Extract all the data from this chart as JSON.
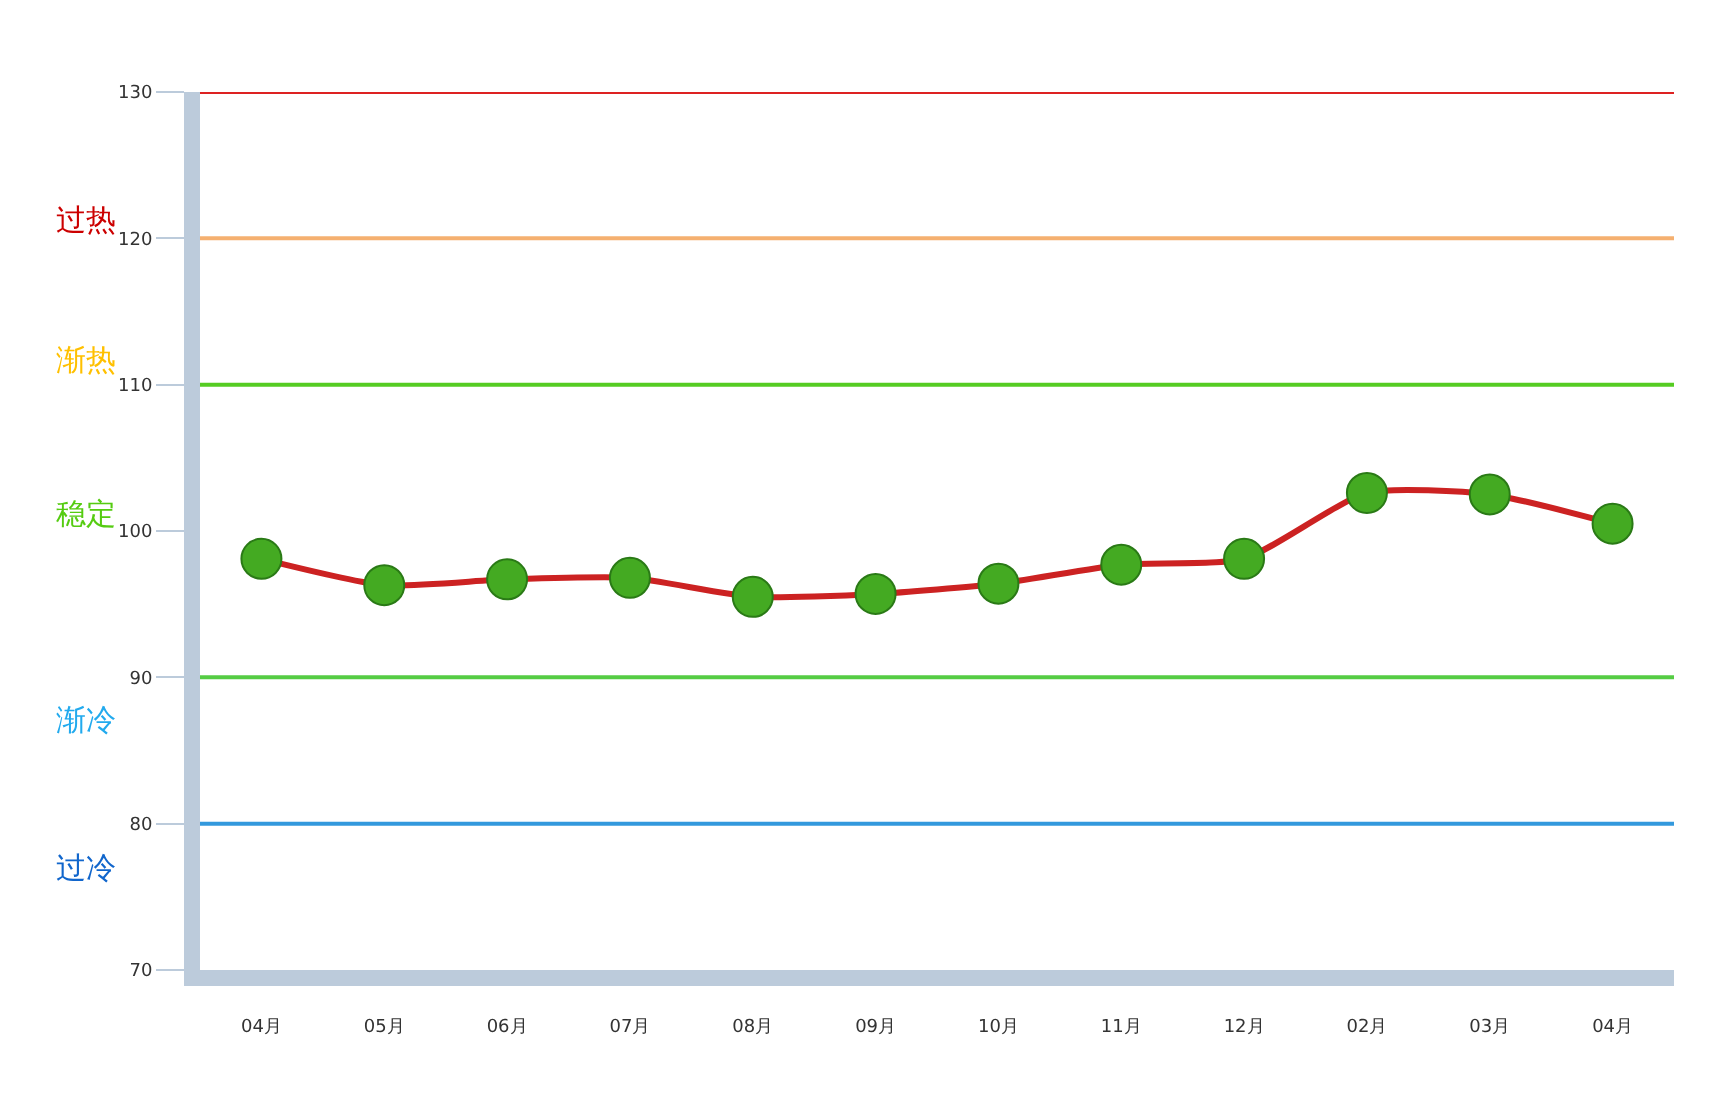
{
  "chart_data": {
    "type": "line",
    "categories": [
      "04月",
      "05月",
      "06月",
      "07月",
      "08月",
      "09月",
      "10月",
      "11月",
      "12月",
      "02月",
      "03月",
      "04月"
    ],
    "series": [
      {
        "color": "#cc2222",
        "colors": [
          "#44aa22",
          "#44aa22",
          "#44aa22",
          "#44aa22",
          "#44aa22",
          "#44aa22",
          "#44aa22",
          "#44aa22",
          "#44aa22",
          "#44aa22",
          "#44aa22",
          "#44aa22"
        ],
        "values": [
          98.1,
          96.3,
          96.7,
          96.8,
          95.5,
          95.7,
          96.4,
          97.7,
          98.1,
          102.6,
          102.5,
          100.5
        ]
      }
    ],
    "ylim": [
      70,
      130
    ],
    "yticks": [
      70,
      80,
      90,
      100,
      110,
      120,
      130
    ],
    "marker": "circle",
    "grid": false,
    "ref_lines": [
      {
        "axis": "y",
        "value": 130,
        "color": "#dd2222"
      },
      {
        "axis": "y",
        "value": 120,
        "color": "#f5b070"
      },
      {
        "axis": "y",
        "value": 110,
        "color": "#55cc22"
      },
      {
        "axis": "y",
        "value": 90,
        "color": "#55cc44"
      },
      {
        "axis": "y",
        "value": 80,
        "color": "#3399dd"
      }
    ],
    "annotations": [
      "过热",
      "渐热",
      "稳定",
      "渐冷",
      "过冷"
    ]
  }
}
